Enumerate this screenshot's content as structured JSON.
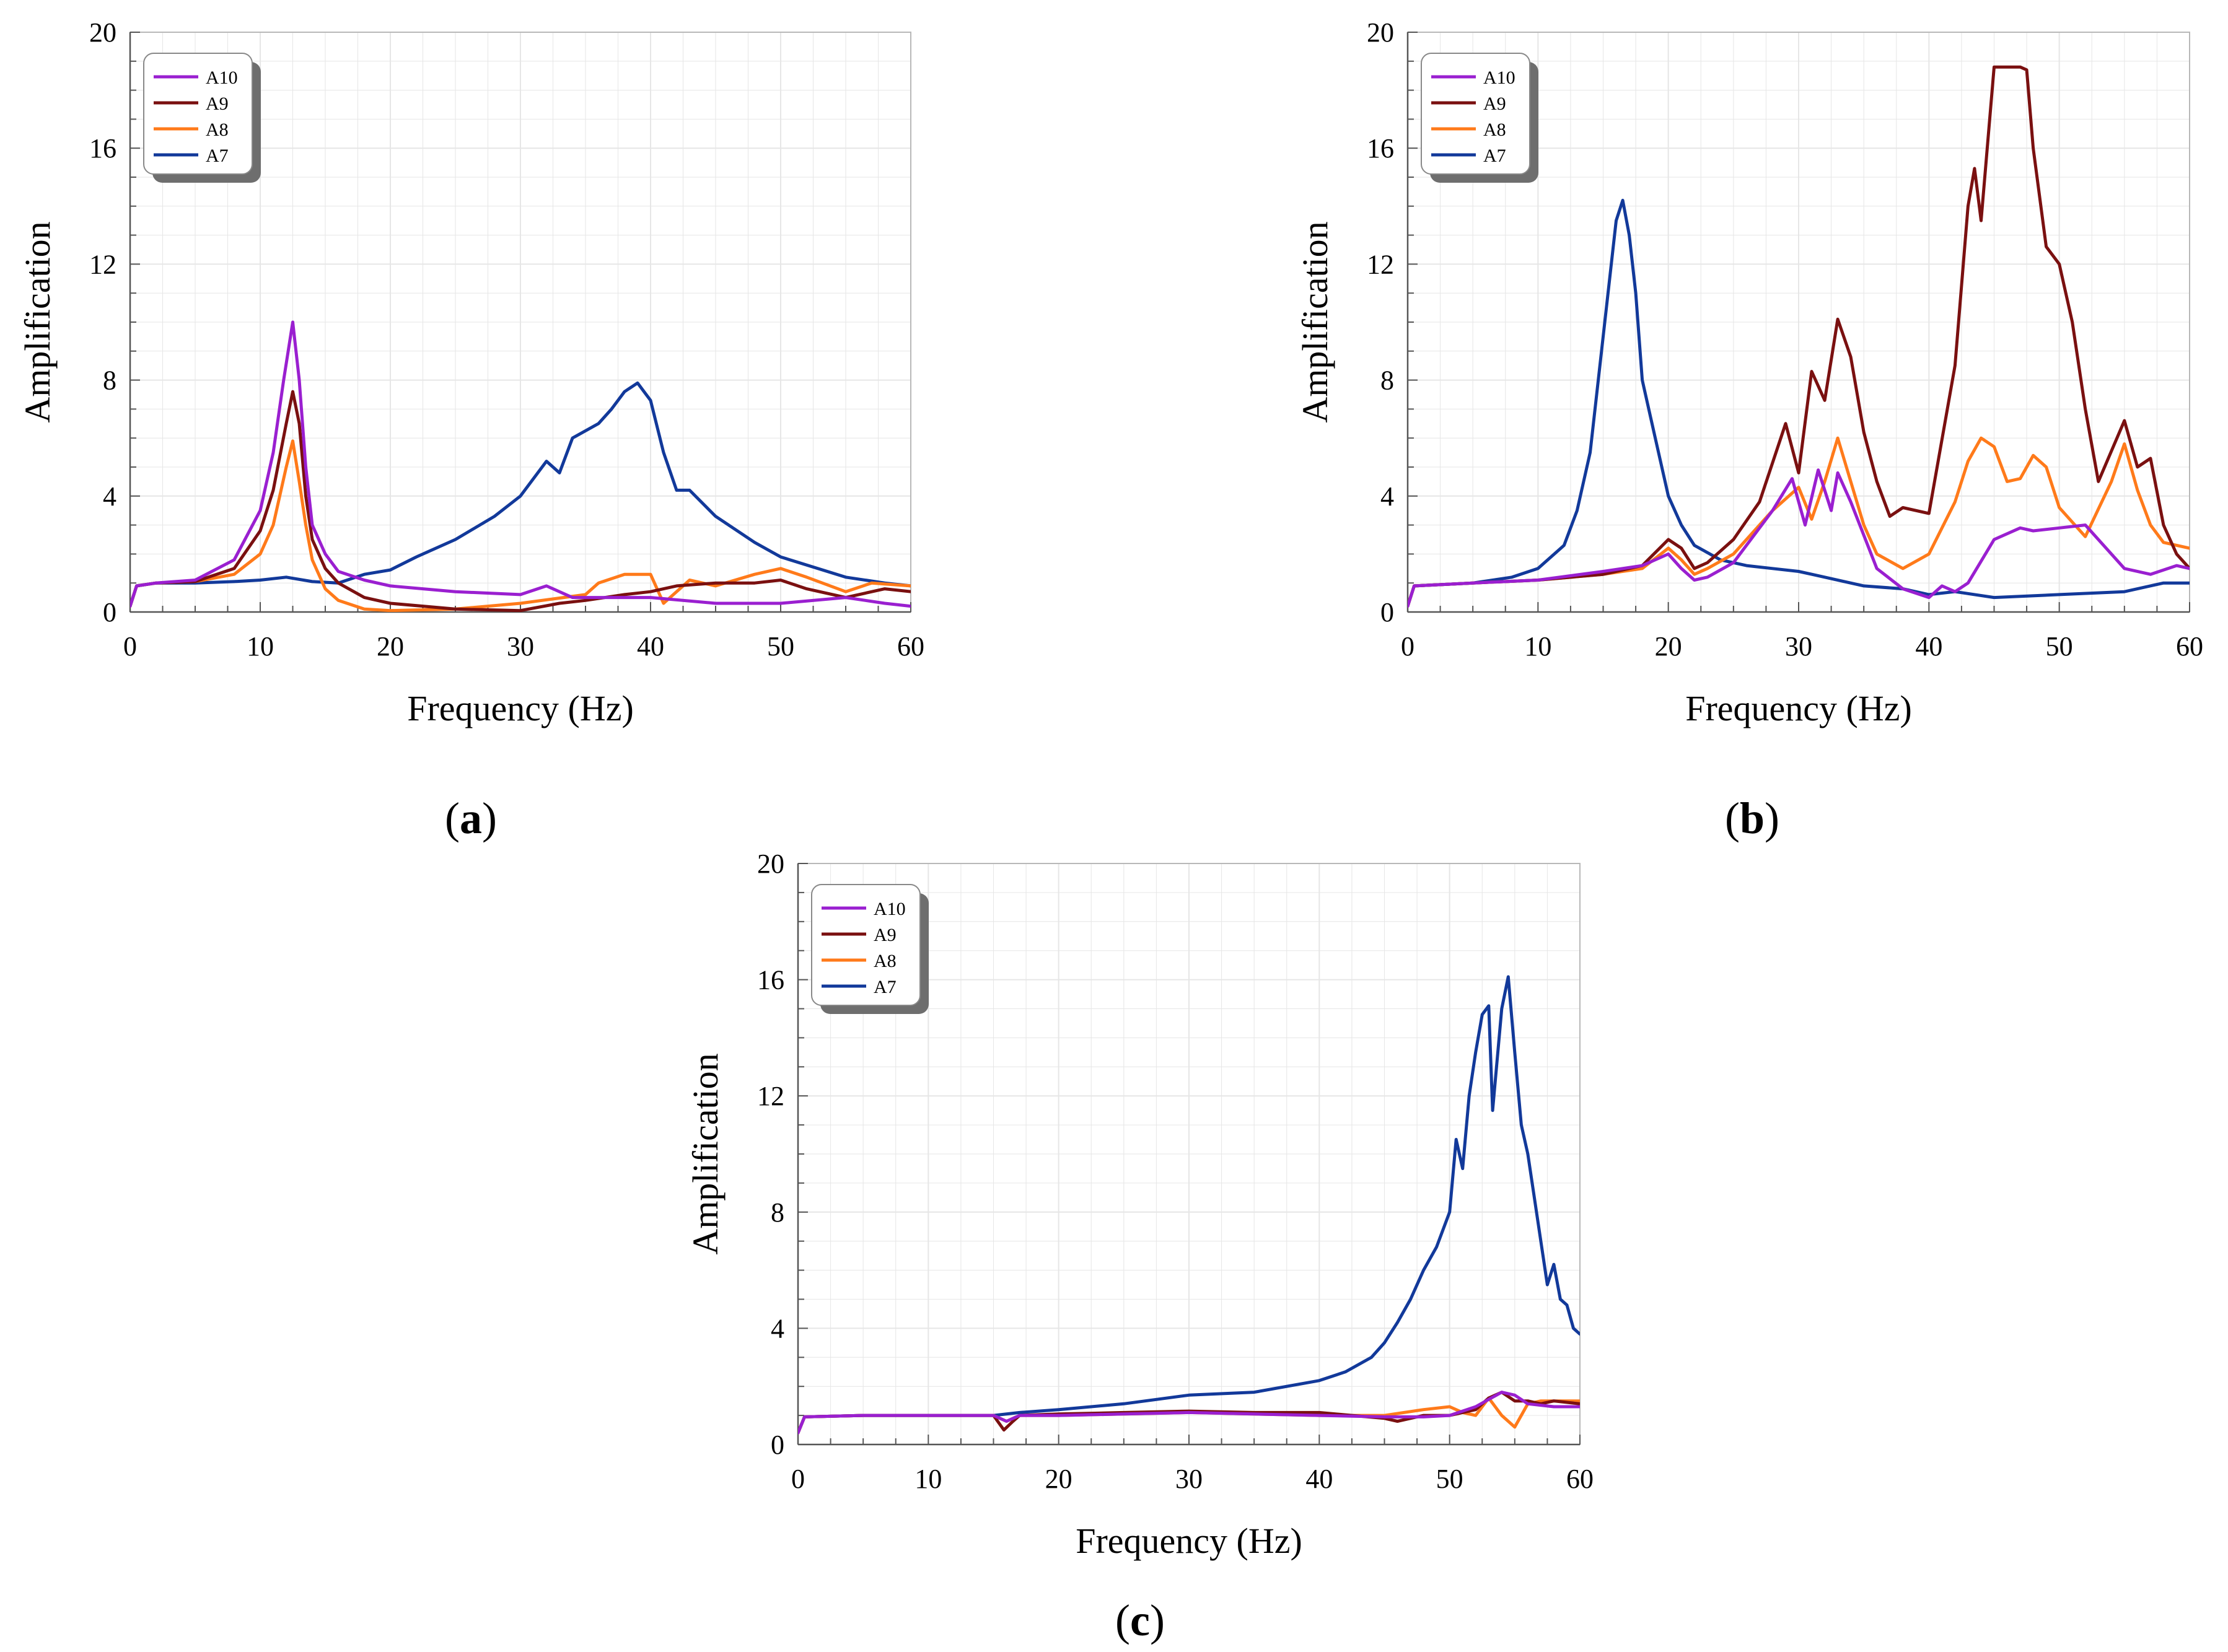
{
  "colors": {
    "A10": "#9a1fd0",
    "A9": "#7a1010",
    "A8": "#ff7a1a",
    "A7": "#12399a",
    "grid": "#e6e6e6",
    "frame": "#b8b8b8"
  },
  "chart_data": [
    {
      "id": "a",
      "panel_label": "a",
      "type": "line",
      "xlabel": "Frequency (Hz)",
      "ylabel": "Amplification",
      "xlim": [
        0,
        60
      ],
      "ylim": [
        0,
        20
      ],
      "xticks": [
        "0",
        "10",
        "20",
        "30",
        "40",
        "50",
        "60"
      ],
      "yticks": [
        "0",
        "4",
        "8",
        "12",
        "16",
        "20"
      ],
      "grid": true,
      "legend": "top-left",
      "series": [
        {
          "name": "A10",
          "x": [
            0,
            0.5,
            2,
            5,
            8,
            10,
            11,
            11.8,
            12.5,
            13,
            13.5,
            14,
            15,
            16,
            18,
            20,
            25,
            30,
            32,
            34,
            36,
            40,
            45,
            50,
            55,
            58,
            60
          ],
          "y": [
            0.2,
            0.9,
            1.0,
            1.1,
            1.8,
            3.5,
            5.5,
            8,
            10.0,
            8,
            5,
            3,
            2,
            1.4,
            1.1,
            0.9,
            0.7,
            0.6,
            0.9,
            0.5,
            0.5,
            0.5,
            0.3,
            0.3,
            0.5,
            0.3,
            0.2
          ]
        },
        {
          "name": "A9",
          "x": [
            0,
            0.5,
            2,
            5,
            8,
            10,
            11,
            12,
            12.5,
            13,
            13.5,
            14,
            15,
            16,
            18,
            20,
            25,
            30,
            33,
            35,
            38,
            40,
            42,
            45,
            48,
            50,
            52,
            55,
            58,
            60
          ],
          "y": [
            0.2,
            0.9,
            1.0,
            1.05,
            1.5,
            2.8,
            4.2,
            6.5,
            7.6,
            6.5,
            4,
            2.5,
            1.5,
            1.0,
            0.5,
            0.3,
            0.1,
            0.05,
            0.3,
            0.4,
            0.6,
            0.7,
            0.9,
            1.0,
            1.0,
            1.1,
            0.8,
            0.5,
            0.8,
            0.7
          ]
        },
        {
          "name": "A8",
          "x": [
            0,
            0.5,
            2,
            5,
            8,
            10,
            11,
            12,
            12.5,
            13,
            13.5,
            14,
            15,
            16,
            18,
            20,
            25,
            30,
            35,
            36,
            38,
            40,
            41,
            43,
            45,
            48,
            50,
            52,
            55,
            57,
            60
          ],
          "y": [
            0.2,
            0.9,
            1.0,
            1.05,
            1.3,
            2.0,
            3.0,
            5,
            5.9,
            4.5,
            3,
            1.8,
            0.8,
            0.4,
            0.1,
            0.05,
            0.1,
            0.3,
            0.6,
            1.0,
            1.3,
            1.3,
            0.3,
            1.1,
            0.9,
            1.3,
            1.5,
            1.2,
            0.7,
            1.0,
            0.9
          ]
        },
        {
          "name": "A7",
          "x": [
            0,
            0.5,
            2,
            5,
            8,
            10,
            12,
            14,
            16,
            18,
            20,
            22,
            25,
            28,
            30,
            32,
            33,
            34,
            36,
            37,
            38,
            39,
            40,
            41,
            42,
            43,
            45,
            48,
            50,
            55,
            58,
            60
          ],
          "y": [
            0.2,
            0.9,
            1.0,
            1.0,
            1.05,
            1.1,
            1.2,
            1.05,
            1.0,
            1.3,
            1.45,
            1.9,
            2.5,
            3.3,
            4.0,
            5.2,
            4.8,
            6.0,
            6.5,
            7.0,
            7.6,
            7.9,
            7.3,
            5.5,
            4.2,
            4.2,
            3.3,
            2.4,
            1.9,
            1.2,
            1.0,
            0.9
          ]
        }
      ]
    },
    {
      "id": "b",
      "panel_label": "b",
      "type": "line",
      "xlabel": "Frequency (Hz)",
      "ylabel": "Amplification",
      "xlim": [
        0,
        60
      ],
      "ylim": [
        0,
        20
      ],
      "xticks": [
        "0",
        "10",
        "20",
        "30",
        "40",
        "50",
        "60"
      ],
      "yticks": [
        "0",
        "4",
        "8",
        "12",
        "16",
        "20"
      ],
      "grid": true,
      "legend": "top-left",
      "series": [
        {
          "name": "A10",
          "x": [
            0,
            0.5,
            5,
            10,
            15,
            18,
            20,
            21,
            22,
            23,
            25,
            28,
            29.5,
            30.5,
            31.5,
            32.5,
            33,
            34,
            36,
            38,
            40,
            41,
            42,
            43,
            45,
            47,
            48,
            50,
            52,
            55,
            57,
            59,
            60
          ],
          "y": [
            0.2,
            0.9,
            1.0,
            1.1,
            1.4,
            1.6,
            2.0,
            1.5,
            1.1,
            1.2,
            1.7,
            3.5,
            4.6,
            3,
            4.9,
            3.5,
            4.8,
            3.8,
            1.5,
            0.8,
            0.5,
            0.9,
            0.7,
            1.0,
            2.5,
            2.9,
            2.8,
            2.9,
            3.0,
            1.5,
            1.3,
            1.6,
            1.5
          ]
        },
        {
          "name": "A9",
          "x": [
            0,
            0.5,
            5,
            10,
            15,
            18,
            20,
            21,
            22,
            23,
            25,
            27,
            29,
            30,
            31,
            32,
            33,
            34,
            35,
            36,
            37,
            38,
            40,
            42,
            43,
            43.5,
            44,
            45,
            46,
            47,
            47.5,
            48,
            49,
            50,
            51,
            52,
            53,
            55,
            56,
            57,
            58,
            59,
            60
          ],
          "y": [
            0.2,
            0.9,
            1.0,
            1.1,
            1.3,
            1.6,
            2.5,
            2.2,
            1.5,
            1.7,
            2.5,
            3.8,
            6.5,
            4.8,
            8.3,
            7.3,
            10.1,
            8.8,
            6.2,
            4.5,
            3.3,
            3.6,
            3.4,
            8.5,
            14,
            15.3,
            13.5,
            18.8,
            18.8,
            18.8,
            18.7,
            16.0,
            12.6,
            12.0,
            10.0,
            7.0,
            4.5,
            6.6,
            5.0,
            5.3,
            3.0,
            2.0,
            1.5
          ]
        },
        {
          "name": "A8",
          "x": [
            0,
            0.5,
            5,
            10,
            15,
            18,
            20,
            21,
            22,
            23,
            25,
            28,
            30,
            31,
            32,
            33,
            34,
            35,
            36,
            38,
            40,
            42,
            43,
            44,
            45,
            46,
            47,
            48,
            49,
            50,
            52,
            54,
            55,
            56,
            57,
            58,
            60
          ],
          "y": [
            0.2,
            0.9,
            1.0,
            1.1,
            1.3,
            1.5,
            2.2,
            1.8,
            1.3,
            1.5,
            2.0,
            3.5,
            4.3,
            3.2,
            4.5,
            6.0,
            4.5,
            3.0,
            2.0,
            1.5,
            2.0,
            3.8,
            5.2,
            6.0,
            5.7,
            4.5,
            4.6,
            5.4,
            5.0,
            3.6,
            2.6,
            4.5,
            5.8,
            4.2,
            3.0,
            2.4,
            2.2
          ]
        },
        {
          "name": "A7",
          "x": [
            0,
            0.5,
            5,
            8,
            10,
            12,
            13,
            14,
            15,
            15.5,
            16,
            16.5,
            17,
            17.5,
            18,
            19,
            20,
            21,
            22,
            24,
            26,
            28,
            30,
            32,
            35,
            38,
            40,
            42,
            45,
            50,
            55,
            58,
            60
          ],
          "y": [
            0.2,
            0.9,
            1.0,
            1.2,
            1.5,
            2.3,
            3.5,
            5.5,
            9.5,
            11.5,
            13.5,
            14.2,
            13.0,
            11.0,
            8.0,
            6.0,
            4.0,
            3.0,
            2.3,
            1.8,
            1.6,
            1.5,
            1.4,
            1.2,
            0.9,
            0.8,
            0.6,
            0.7,
            0.5,
            0.6,
            0.7,
            1.0,
            1.0
          ]
        }
      ]
    },
    {
      "id": "c",
      "panel_label": "c",
      "type": "line",
      "xlabel": "Frequency (Hz)",
      "ylabel": "Amplification",
      "xlim": [
        0,
        60
      ],
      "ylim": [
        0,
        20
      ],
      "xticks": [
        "0",
        "10",
        "20",
        "30",
        "40",
        "50",
        "60"
      ],
      "yticks": [
        "0",
        "4",
        "8",
        "12",
        "16",
        "20"
      ],
      "grid": true,
      "legend": "top-left",
      "series": [
        {
          "name": "A10",
          "x": [
            0,
            0.5,
            5,
            10,
            15,
            16,
            17,
            20,
            25,
            30,
            35,
            40,
            45,
            48,
            50,
            52,
            54,
            55,
            56,
            58,
            60
          ],
          "y": [
            0.4,
            0.95,
            1.0,
            1.0,
            1.0,
            0.8,
            1.0,
            1.0,
            1.05,
            1.1,
            1.05,
            1.0,
            0.95,
            0.95,
            1.0,
            1.3,
            1.8,
            1.7,
            1.4,
            1.3,
            1.3
          ]
        },
        {
          "name": "A9",
          "x": [
            0,
            0.5,
            5,
            10,
            15,
            15.8,
            16.5,
            17,
            20,
            25,
            30,
            35,
            40,
            45,
            46,
            48,
            50,
            52,
            53,
            54,
            55,
            56,
            57,
            58,
            60
          ],
          "y": [
            0.4,
            0.95,
            1.0,
            1.0,
            1.0,
            0.5,
            0.8,
            1.0,
            1.05,
            1.1,
            1.15,
            1.1,
            1.1,
            0.9,
            0.8,
            1.0,
            1.0,
            1.2,
            1.6,
            1.8,
            1.5,
            1.5,
            1.4,
            1.5,
            1.4
          ]
        },
        {
          "name": "A8",
          "x": [
            0,
            0.5,
            5,
            10,
            15,
            16,
            17,
            20,
            25,
            30,
            35,
            40,
            45,
            48,
            50,
            51,
            52,
            53,
            54,
            55,
            56,
            57,
            58,
            60
          ],
          "y": [
            0.4,
            0.95,
            1.0,
            1.0,
            1.0,
            0.8,
            1.0,
            1.0,
            1.05,
            1.1,
            1.05,
            1.0,
            1.0,
            1.2,
            1.3,
            1.1,
            1.0,
            1.6,
            1.0,
            0.6,
            1.4,
            1.5,
            1.5,
            1.5
          ]
        },
        {
          "name": "A7",
          "x": [
            0,
            0.5,
            5,
            10,
            15,
            17,
            20,
            25,
            30,
            35,
            40,
            42,
            44,
            45,
            46,
            47,
            48,
            49,
            50,
            50.5,
            51,
            51.5,
            52,
            52.5,
            53,
            53.3,
            53.6,
            54,
            54.5,
            55,
            55.5,
            56,
            56.5,
            57,
            57.5,
            58,
            58.5,
            59,
            59.5,
            60
          ],
          "y": [
            0.4,
            0.95,
            1.0,
            1.0,
            1.0,
            1.1,
            1.2,
            1.4,
            1.7,
            1.8,
            2.2,
            2.5,
            3.0,
            3.5,
            4.2,
            5.0,
            6.0,
            6.8,
            8.0,
            10.5,
            9.5,
            12,
            13.5,
            14.8,
            15.1,
            11.5,
            13.0,
            15.0,
            16.1,
            13.5,
            11.0,
            10.0,
            8.5,
            7.0,
            5.5,
            6.2,
            5.0,
            4.8,
            4.0,
            3.8
          ]
        }
      ]
    }
  ]
}
